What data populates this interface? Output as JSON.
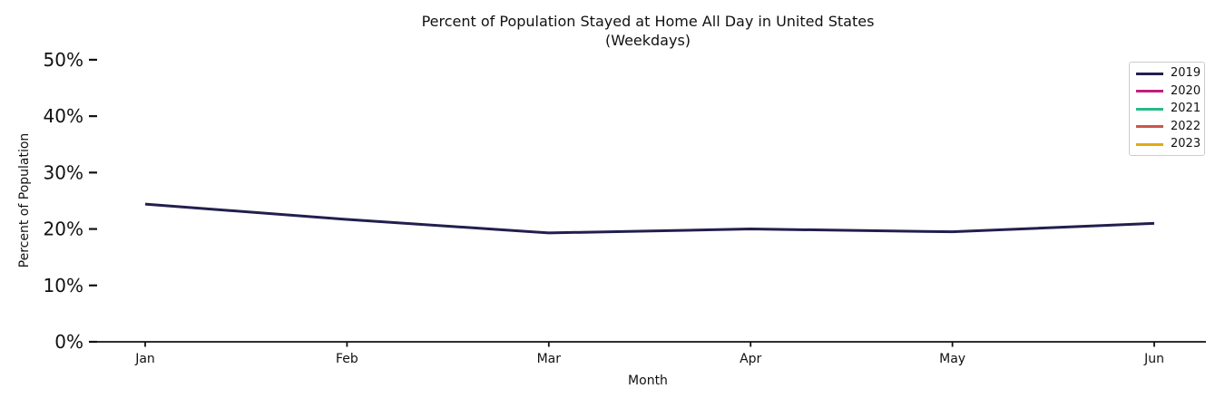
{
  "chart_data": {
    "type": "line",
    "title": "Percent of Population Stayed at Home All Day in United States",
    "subtitle": "(Weekdays)",
    "xlabel": "Month",
    "ylabel": "Percent of Population",
    "categories": [
      "Jan",
      "Feb",
      "Mar",
      "Apr",
      "May",
      "Jun"
    ],
    "y_tick_labels": [
      "0%",
      "10%",
      "20%",
      "30%",
      "40%",
      "50%"
    ],
    "ylim": [
      0,
      50
    ],
    "grid": false,
    "legend_position": "upper-right",
    "axis_color": "#111111",
    "text_color": "#111111",
    "series": [
      {
        "name": "2019",
        "color": "#221f4e",
        "values": [
          24.4,
          21.7,
          19.3,
          20.0,
          19.5,
          21.0
        ]
      },
      {
        "name": "2020",
        "color": "#c11f7c",
        "values": []
      },
      {
        "name": "2021",
        "color": "#29b98a",
        "values": []
      },
      {
        "name": "2022",
        "color": "#cd5549",
        "values": []
      },
      {
        "name": "2023",
        "color": "#e2ab13",
        "values": []
      }
    ]
  }
}
